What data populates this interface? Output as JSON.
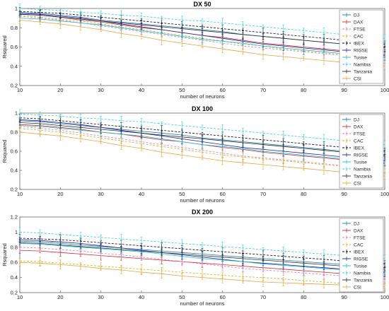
{
  "chart_data": [
    {
      "type": "line",
      "title": "DX 50",
      "xlabel": "number of neurons",
      "ylabel": "Rsquared",
      "xlim": [
        10,
        100
      ],
      "ylim": [
        0.2,
        1.0
      ],
      "xticks": [
        "10",
        "20",
        "30",
        "40",
        "50",
        "60",
        "70",
        "80",
        "90",
        "100"
      ],
      "yticks": [
        "0.2",
        "0.4",
        "0.6",
        "0.8",
        "1"
      ],
      "x": [
        10,
        15,
        20,
        25,
        30,
        35,
        40,
        45,
        50,
        55,
        60,
        65,
        70,
        75,
        80,
        85,
        90,
        95,
        100
      ],
      "legend_position": "top-right",
      "series": [
        {
          "name": "DJ",
          "color": "#1f77b4",
          "dashed": false,
          "values": [
            0.96,
            0.95,
            0.93,
            0.91,
            0.88,
            0.86,
            0.84,
            0.82,
            0.8,
            0.78,
            0.76,
            0.73,
            0.71,
            0.69,
            0.67,
            0.65,
            0.63,
            0.61,
            0.6
          ]
        },
        {
          "name": "DAX",
          "color": "#d62728",
          "dashed": false,
          "values": [
            0.94,
            0.93,
            0.91,
            0.88,
            0.86,
            0.83,
            0.8,
            0.78,
            0.75,
            0.72,
            0.7,
            0.67,
            0.64,
            0.62,
            0.6,
            0.58,
            0.56,
            0.54,
            0.52
          ]
        },
        {
          "name": "FTSE",
          "color": "#e377c2",
          "dashed": true,
          "values": [
            0.92,
            0.9,
            0.88,
            0.85,
            0.82,
            0.79,
            0.76,
            0.73,
            0.7,
            0.67,
            0.64,
            0.61,
            0.59,
            0.57,
            0.55,
            0.53,
            0.51,
            0.49,
            0.47
          ]
        },
        {
          "name": "CAC",
          "color": "#bcbd22",
          "dashed": true,
          "values": [
            0.93,
            0.91,
            0.89,
            0.87,
            0.84,
            0.81,
            0.78,
            0.75,
            0.72,
            0.69,
            0.66,
            0.63,
            0.61,
            0.58,
            0.56,
            0.54,
            0.52,
            0.5,
            0.48
          ]
        },
        {
          "name": "IBEX",
          "color": "#000000",
          "dashed": true,
          "values": [
            0.97,
            0.96,
            0.95,
            0.93,
            0.91,
            0.89,
            0.87,
            0.85,
            0.83,
            0.81,
            0.79,
            0.77,
            0.75,
            0.73,
            0.71,
            0.69,
            0.67,
            0.65,
            0.63
          ]
        },
        {
          "name": "RIGSE",
          "color": "#1f1f9f",
          "dashed": false,
          "values": [
            0.95,
            0.94,
            0.92,
            0.9,
            0.87,
            0.84,
            0.81,
            0.78,
            0.75,
            0.72,
            0.69,
            0.66,
            0.63,
            0.61,
            0.59,
            0.57,
            0.55,
            0.53,
            0.51
          ]
        },
        {
          "name": "Tusise",
          "color": "#17becf",
          "dashed": false,
          "values": [
            0.9,
            0.89,
            0.87,
            0.85,
            0.83,
            0.8,
            0.77,
            0.74,
            0.71,
            0.68,
            0.66,
            0.64,
            0.61,
            0.59,
            0.57,
            0.55,
            0.53,
            0.51,
            0.49
          ]
        },
        {
          "name": "Namibia",
          "color": "#2ad4d4",
          "dashed": true,
          "values": [
            1.0,
            0.99,
            0.98,
            0.96,
            0.95,
            0.93,
            0.92,
            0.9,
            0.88,
            0.87,
            0.85,
            0.83,
            0.81,
            0.79,
            0.77,
            0.75,
            0.73,
            0.71,
            0.69
          ]
        },
        {
          "name": "Tanzania",
          "color": "#2c2c2c",
          "dashed": false,
          "values": [
            0.94,
            0.93,
            0.91,
            0.89,
            0.87,
            0.85,
            0.83,
            0.81,
            0.79,
            0.77,
            0.75,
            0.73,
            0.71,
            0.69,
            0.67,
            0.65,
            0.63,
            0.61,
            0.59
          ]
        },
        {
          "name": "CSI",
          "color": "#e8a23a",
          "dashed": false,
          "values": [
            0.88,
            0.86,
            0.84,
            0.81,
            0.78,
            0.74,
            0.71,
            0.67,
            0.64,
            0.61,
            0.58,
            0.55,
            0.52,
            0.5,
            0.48,
            0.46,
            0.44,
            0.42,
            0.4
          ]
        }
      ]
    },
    {
      "type": "line",
      "title": "DX 100",
      "xlabel": "number of neurons",
      "ylabel": "Rsquared",
      "xlim": [
        10,
        100
      ],
      "ylim": [
        0.2,
        1.0
      ],
      "xticks": [
        "10",
        "20",
        "30",
        "40",
        "50",
        "60",
        "70",
        "80",
        "90",
        "100"
      ],
      "yticks": [
        "0.2",
        "0.4",
        "0.6",
        "0.8",
        "1"
      ],
      "x": [
        10,
        15,
        20,
        25,
        30,
        35,
        40,
        45,
        50,
        55,
        60,
        65,
        70,
        75,
        80,
        85,
        90,
        95,
        100
      ],
      "legend_position": "top-right",
      "series": [
        {
          "name": "DJ",
          "color": "#1f77b4",
          "dashed": false,
          "values": [
            0.92,
            0.91,
            0.89,
            0.87,
            0.85,
            0.83,
            0.81,
            0.79,
            0.77,
            0.74,
            0.72,
            0.7,
            0.68,
            0.66,
            0.64,
            0.62,
            0.6,
            0.58,
            0.56
          ]
        },
        {
          "name": "DAX",
          "color": "#d62728",
          "dashed": false,
          "values": [
            0.88,
            0.87,
            0.85,
            0.83,
            0.8,
            0.78,
            0.75,
            0.72,
            0.7,
            0.67,
            0.64,
            0.62,
            0.59,
            0.57,
            0.55,
            0.53,
            0.51,
            0.49,
            0.47
          ]
        },
        {
          "name": "FTSE",
          "color": "#e377c2",
          "dashed": true,
          "values": [
            0.86,
            0.84,
            0.82,
            0.79,
            0.76,
            0.73,
            0.7,
            0.67,
            0.64,
            0.61,
            0.58,
            0.55,
            0.53,
            0.51,
            0.49,
            0.47,
            0.45,
            0.43,
            0.41
          ]
        },
        {
          "name": "CAC",
          "color": "#bcbd22",
          "dashed": true,
          "values": [
            0.84,
            0.82,
            0.8,
            0.77,
            0.74,
            0.71,
            0.68,
            0.65,
            0.62,
            0.59,
            0.56,
            0.54,
            0.52,
            0.5,
            0.48,
            0.46,
            0.44,
            0.42,
            0.4
          ]
        },
        {
          "name": "IBEX",
          "color": "#000000",
          "dashed": true,
          "values": [
            0.95,
            0.94,
            0.92,
            0.9,
            0.88,
            0.86,
            0.84,
            0.82,
            0.8,
            0.78,
            0.76,
            0.74,
            0.72,
            0.7,
            0.68,
            0.66,
            0.64,
            0.62,
            0.6
          ]
        },
        {
          "name": "RIGSE",
          "color": "#1f1f9f",
          "dashed": false,
          "values": [
            0.93,
            0.92,
            0.9,
            0.88,
            0.85,
            0.82,
            0.79,
            0.76,
            0.73,
            0.7,
            0.67,
            0.64,
            0.62,
            0.6,
            0.58,
            0.56,
            0.54,
            0.52,
            0.5
          ]
        },
        {
          "name": "Tusise",
          "color": "#17becf",
          "dashed": false,
          "values": [
            0.87,
            0.86,
            0.84,
            0.82,
            0.8,
            0.78,
            0.76,
            0.73,
            0.7,
            0.67,
            0.65,
            0.63,
            0.6,
            0.58,
            0.56,
            0.54,
            0.52,
            0.5,
            0.48
          ]
        },
        {
          "name": "Namibia",
          "color": "#2ad4d4",
          "dashed": true,
          "values": [
            0.99,
            0.98,
            0.97,
            0.95,
            0.94,
            0.92,
            0.91,
            0.89,
            0.87,
            0.85,
            0.83,
            0.81,
            0.79,
            0.77,
            0.75,
            0.73,
            0.71,
            0.69,
            0.67
          ]
        },
        {
          "name": "Tanzania",
          "color": "#2c2c2c",
          "dashed": false,
          "values": [
            0.9,
            0.89,
            0.87,
            0.85,
            0.83,
            0.81,
            0.79,
            0.77,
            0.75,
            0.73,
            0.71,
            0.69,
            0.67,
            0.65,
            0.63,
            0.61,
            0.59,
            0.57,
            0.55
          ]
        },
        {
          "name": "CSI",
          "color": "#e8a23a",
          "dashed": false,
          "values": [
            0.8,
            0.78,
            0.76,
            0.73,
            0.7,
            0.66,
            0.63,
            0.59,
            0.56,
            0.53,
            0.5,
            0.48,
            0.46,
            0.44,
            0.42,
            0.4,
            0.38,
            0.36,
            0.34
          ]
        }
      ]
    },
    {
      "type": "line",
      "title": "DX 200",
      "xlabel": "number of neurons",
      "ylabel": "Rsquared",
      "xlim": [
        10,
        100
      ],
      "ylim": [
        0.2,
        1.2
      ],
      "xticks": [
        "10",
        "20",
        "30",
        "40",
        "50",
        "60",
        "70",
        "80",
        "90",
        "100"
      ],
      "yticks": [
        "0.2",
        "0.4",
        "0.6",
        "0.8",
        "1",
        "1.2"
      ],
      "x": [
        10,
        15,
        20,
        25,
        30,
        35,
        40,
        45,
        50,
        55,
        60,
        65,
        70,
        75,
        80,
        85,
        90,
        95,
        100
      ],
      "legend_position": "top-right",
      "series": [
        {
          "name": "DJ",
          "color": "#1f77b4",
          "dashed": false,
          "values": [
            0.88,
            0.87,
            0.85,
            0.83,
            0.81,
            0.79,
            0.77,
            0.75,
            0.73,
            0.71,
            0.69,
            0.67,
            0.65,
            0.63,
            0.61,
            0.59,
            0.57,
            0.55,
            0.53
          ]
        },
        {
          "name": "DAX",
          "color": "#d62728",
          "dashed": false,
          "values": [
            0.76,
            0.75,
            0.73,
            0.71,
            0.69,
            0.67,
            0.65,
            0.63,
            0.61,
            0.59,
            0.57,
            0.55,
            0.53,
            0.51,
            0.49,
            0.47,
            0.45,
            0.43,
            0.41
          ]
        },
        {
          "name": "FTSE",
          "color": "#e377c2",
          "dashed": true,
          "values": [
            0.8,
            0.79,
            0.77,
            0.75,
            0.72,
            0.7,
            0.67,
            0.64,
            0.61,
            0.58,
            0.55,
            0.52,
            0.5,
            0.48,
            0.46,
            0.44,
            0.42,
            0.4,
            0.38
          ]
        },
        {
          "name": "CAC",
          "color": "#bcbd22",
          "dashed": true,
          "values": [
            0.62,
            0.61,
            0.59,
            0.57,
            0.55,
            0.53,
            0.51,
            0.49,
            0.47,
            0.45,
            0.43,
            0.41,
            0.4,
            0.38,
            0.36,
            0.34,
            0.32,
            0.3,
            0.28
          ]
        },
        {
          "name": "IBEX",
          "color": "#000000",
          "dashed": true,
          "values": [
            0.92,
            0.91,
            0.9,
            0.88,
            0.86,
            0.84,
            0.82,
            0.8,
            0.78,
            0.76,
            0.74,
            0.72,
            0.7,
            0.68,
            0.66,
            0.64,
            0.62,
            0.6,
            0.58
          ]
        },
        {
          "name": "RIGSE",
          "color": "#1f1f9f",
          "dashed": false,
          "values": [
            0.9,
            0.89,
            0.87,
            0.85,
            0.82,
            0.79,
            0.76,
            0.73,
            0.7,
            0.67,
            0.64,
            0.61,
            0.59,
            0.57,
            0.55,
            0.53,
            0.51,
            0.49,
            0.47
          ]
        },
        {
          "name": "Tusise",
          "color": "#17becf",
          "dashed": false,
          "values": [
            0.85,
            0.84,
            0.82,
            0.8,
            0.78,
            0.76,
            0.74,
            0.71,
            0.68,
            0.65,
            0.63,
            0.61,
            0.58,
            0.56,
            0.54,
            0.52,
            0.5,
            0.48,
            0.46
          ]
        },
        {
          "name": "Namibia",
          "color": "#2ad4d4",
          "dashed": true,
          "values": [
            1.0,
            0.99,
            0.97,
            0.95,
            0.93,
            0.91,
            0.89,
            0.87,
            0.85,
            0.83,
            0.81,
            0.79,
            0.77,
            0.75,
            0.73,
            0.71,
            0.69,
            0.67,
            0.65
          ]
        },
        {
          "name": "Tanzania",
          "color": "#2c2c2c",
          "dashed": false,
          "values": [
            0.86,
            0.85,
            0.83,
            0.81,
            0.79,
            0.77,
            0.75,
            0.73,
            0.71,
            0.69,
            0.67,
            0.65,
            0.63,
            0.61,
            0.59,
            0.57,
            0.55,
            0.53,
            0.51
          ]
        },
        {
          "name": "CSI",
          "color": "#e8a23a",
          "dashed": false,
          "values": [
            0.6,
            0.59,
            0.57,
            0.55,
            0.52,
            0.5,
            0.47,
            0.45,
            0.42,
            0.4,
            0.38,
            0.36,
            0.34,
            0.33,
            0.32,
            0.31,
            0.3,
            0.29,
            0.28
          ]
        }
      ]
    }
  ]
}
